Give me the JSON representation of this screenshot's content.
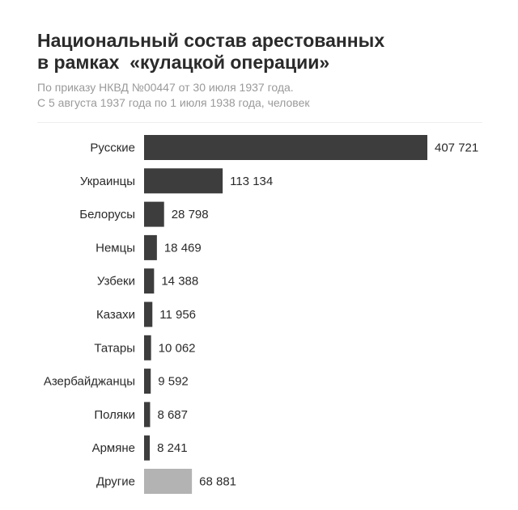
{
  "title_lines": [
    "Национальный состав арестованных",
    "в рамках  «кулацкой операции»"
  ],
  "subtitle_lines": [
    "По приказу НКВД №00447 от 30 июля 1937 года.",
    "С 5 августа 1937 года по 1 июля 1938 года, человек"
  ],
  "colors": {
    "bar": "#3d3d3d",
    "bar_other": "#b3b3b3",
    "title": "#2a2a2a",
    "subtitle": "#9a9a9a"
  },
  "chart_data": {
    "type": "bar",
    "orientation": "horizontal",
    "title": "Национальный состав арестованных в рамках  «кулацкой операции»",
    "subtitle": "По приказу НКВД №00447 от 30 июля 1937 года. С 5 августа 1937 года по 1 июля 1938 года, человек",
    "xlabel": "",
    "ylabel": "",
    "categories": [
      "Русские",
      "Украинцы",
      "Белорусы",
      "Немцы",
      "Узбеки",
      "Казахи",
      "Татары",
      "Азербайджанцы",
      "Поляки",
      "Армяне",
      "Другие"
    ],
    "values": [
      407721,
      113134,
      28798,
      18469,
      14388,
      11956,
      10062,
      9592,
      8687,
      8241,
      68881
    ],
    "value_labels": [
      "407 721",
      "113 134",
      "28 798",
      "18 469",
      "14 388",
      "11 956",
      "10 062",
      "9 592",
      "8 687",
      "8 241",
      "68 881"
    ],
    "highlight": [
      "",
      "",
      "",
      "",
      "",
      "",
      "",
      "",
      "",
      "",
      "other"
    ],
    "xlim": [
      0,
      407721
    ],
    "grid": false,
    "legend": "none"
  }
}
